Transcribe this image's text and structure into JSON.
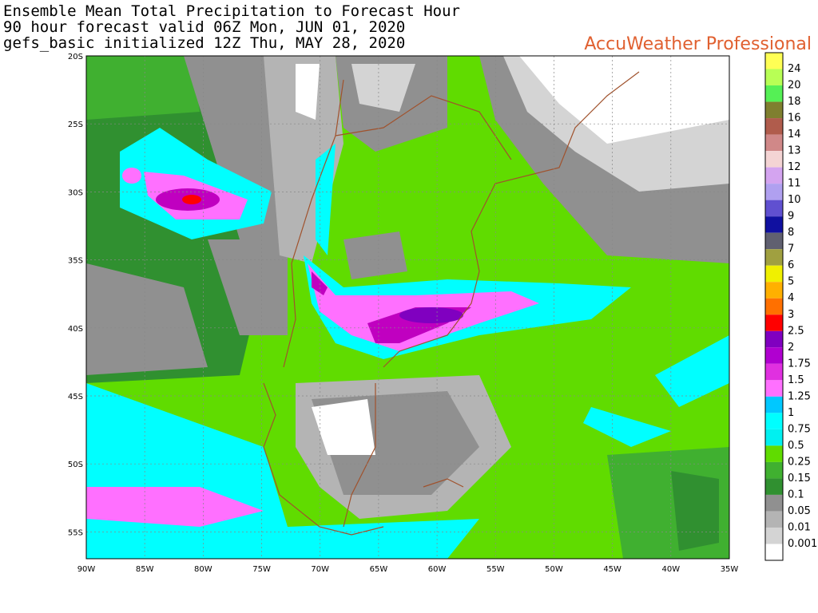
{
  "header": {
    "lines": [
      "Ensemble Mean Total Precipitation to Forecast Hour",
      "90 hour forecast valid 06Z Mon, JUN 01, 2020",
      "gefs_basic initialized 12Z Thu, MAY 28, 2020"
    ],
    "brand": "AccuWeather Professional"
  },
  "map": {
    "lat_labels": [
      "20S",
      "25S",
      "30S",
      "35S",
      "40S",
      "45S",
      "50S",
      "55S"
    ],
    "lon_labels": [
      "90W",
      "85W",
      "80W",
      "75W",
      "70W",
      "65W",
      "60W",
      "55W",
      "50W",
      "45W",
      "40W",
      "35W"
    ]
  },
  "legend": {
    "labels": [
      "24",
      "20",
      "18",
      "16",
      "14",
      "13",
      "12",
      "11",
      "10",
      "9",
      "8",
      "7",
      "6",
      "5",
      "4",
      "3",
      "2.5",
      "2",
      "1.75",
      "1.5",
      "1.25",
      "1",
      "0.75",
      "0.5",
      "0.25",
      "0.15",
      "0.1",
      "0.05",
      "0.01",
      "0.001"
    ],
    "colors": [
      "#ffff55",
      "#b8ff55",
      "#55f055",
      "#7f7f2f",
      "#b05c4c",
      "#d08888",
      "#f4d4d4",
      "#d4a4f0",
      "#b0a0f0",
      "#6050d0",
      "#1010a0",
      "#606070",
      "#a0a040",
      "#f0f000",
      "#ffb000",
      "#ff7000",
      "#ff0000",
      "#8000c0",
      "#b000d0",
      "#e030e0",
      "#ff70ff",
      "#00c8ff",
      "#00ffff",
      "#00f0f0",
      "#60dc00",
      "#40b030",
      "#309030",
      "#909090",
      "#b4b4b4",
      "#d4d4d4",
      "#ffffff"
    ]
  }
}
